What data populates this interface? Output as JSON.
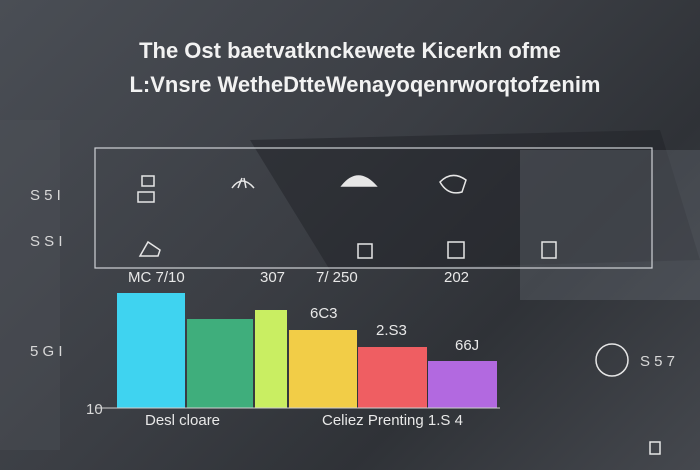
{
  "header": {
    "title": "The Ost baetvatknckewete Kicerkn ofme",
    "subtitle": "L:Vnsre WetheDtteWenayoqenrworqtofzenim"
  },
  "side_labels": [
    "S 5 I",
    "S S I",
    "5 G I",
    "10"
  ],
  "bar_labels": [
    "MC 7/10",
    "307",
    "7/ 250",
    "202",
    "6C3",
    "2.S3",
    "66J"
  ],
  "footer_labels": [
    "Desl cloare",
    "Celiez Prenting  1.S 4"
  ],
  "right_label": "S 5 7"
}
